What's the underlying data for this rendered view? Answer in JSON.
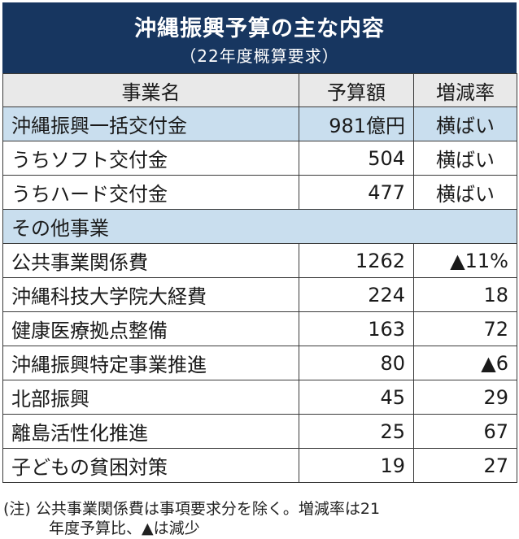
{
  "title": {
    "main": "沖縄振興予算の主な内容",
    "sub": "（22年度概算要求）"
  },
  "table": {
    "headers": [
      "事業名",
      "予算額",
      "増減率"
    ],
    "rows": [
      {
        "name": "沖縄振興一括交付金",
        "amount": "981億円",
        "rate": "横ばい",
        "style": "blue"
      },
      {
        "name": "うちソフト交付金",
        "amount": "504",
        "rate": "横ばい",
        "style": "indent"
      },
      {
        "name": "うちハード交付金",
        "amount": "477",
        "rate": "横ばい",
        "style": "indent"
      },
      {
        "name": "その他事業",
        "amount": "",
        "rate": "",
        "style": "section"
      },
      {
        "name": "公共事業関係費",
        "amount": "1262",
        "rate": "▲11%",
        "style": "plain"
      },
      {
        "name": "沖縄科技大学院大経費",
        "amount": "224",
        "rate": "18",
        "style": "plain"
      },
      {
        "name": "健康医療拠点整備",
        "amount": "163",
        "rate": "72",
        "style": "plain"
      },
      {
        "name": "沖縄振興特定事業推進",
        "amount": "80",
        "rate": "▲6",
        "style": "plain"
      },
      {
        "name": "北部振興",
        "amount": "45",
        "rate": "29",
        "style": "plain"
      },
      {
        "name": "離島活性化推進",
        "amount": "25",
        "rate": "67",
        "style": "plain"
      },
      {
        "name": "子どもの貧困対策",
        "amount": "19",
        "rate": "27",
        "style": "plain"
      }
    ]
  },
  "note": {
    "line1": "(注) 公共事業関係費は事項要求分を除く。増減率は21",
    "line2": "年度予算比、▲は減少"
  }
}
